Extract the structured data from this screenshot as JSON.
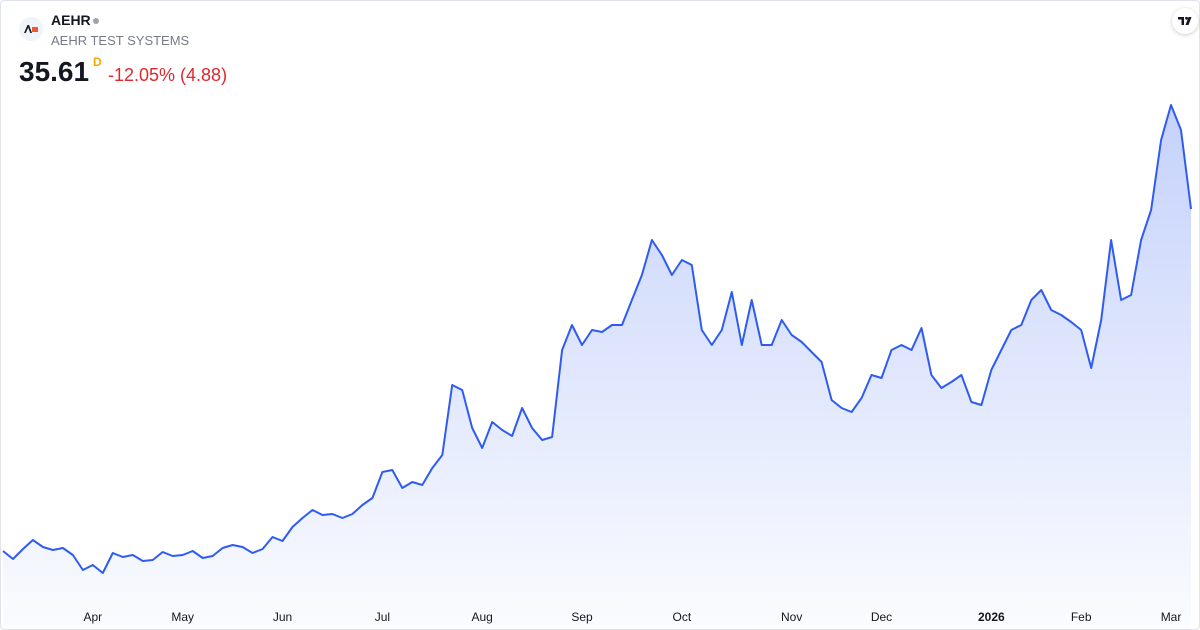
{
  "header": {
    "symbol": "AEHR",
    "name": "AEHR TEST SYSTEMS",
    "last_price": "35.61",
    "interval": "D",
    "change": "-12.05% (4.88)"
  },
  "chart_data": {
    "type": "area",
    "categories": [
      null,
      null,
      null,
      null,
      null,
      null,
      null,
      null,
      null,
      "Apr",
      null,
      null,
      null,
      null,
      null,
      null,
      null,
      null,
      "May",
      null,
      null,
      null,
      null,
      null,
      null,
      null,
      null,
      null,
      "Jun",
      null,
      null,
      null,
      null,
      null,
      null,
      null,
      null,
      null,
      "Jul",
      null,
      null,
      null,
      null,
      null,
      null,
      null,
      null,
      null,
      "Aug",
      null,
      null,
      null,
      null,
      null,
      null,
      null,
      null,
      null,
      "Sep",
      null,
      null,
      null,
      null,
      null,
      null,
      null,
      null,
      null,
      "Oct",
      null,
      null,
      null,
      null,
      null,
      null,
      null,
      null,
      null,
      null,
      "Nov",
      null,
      null,
      null,
      null,
      null,
      null,
      null,
      null,
      "Dec",
      null,
      null,
      null,
      null,
      null,
      null,
      null,
      null,
      null,
      null,
      "2026",
      null,
      null,
      null,
      null,
      null,
      null,
      null,
      null,
      "Feb",
      null,
      null,
      null,
      null,
      null,
      null,
      null,
      null,
      "Mar",
      null,
      null
    ],
    "series": [
      {
        "color": "#2f5cf0",
        "values": [
          8.25,
          7.61,
          8.41,
          9.13,
          8.57,
          8.33,
          8.49,
          7.93,
          6.73,
          7.13,
          6.49,
          8.09,
          7.77,
          7.93,
          7.45,
          7.53,
          8.17,
          7.85,
          7.93,
          8.25,
          7.69,
          7.85,
          8.49,
          8.73,
          8.57,
          8.09,
          8.41,
          9.37,
          9.05,
          10.17,
          10.89,
          11.53,
          11.13,
          11.21,
          10.89,
          11.21,
          11.93,
          12.49,
          14.57,
          14.73,
          13.29,
          13.77,
          13.53,
          14.89,
          15.93,
          21.53,
          21.13,
          18.09,
          16.49,
          18.57,
          17.93,
          17.45,
          19.69,
          18.09,
          17.13,
          17.37,
          24.33,
          26.33,
          24.73,
          25.93,
          25.77,
          26.33,
          26.33,
          28.33,
          30.33,
          33.13,
          31.93,
          30.33,
          31.53,
          31.13,
          25.93,
          24.73,
          25.93,
          28.97,
          24.73,
          28.33,
          24.73,
          24.73,
          26.73,
          25.53,
          24.97,
          24.17,
          23.37,
          20.33,
          19.69,
          19.37,
          20.49,
          22.33,
          22.09,
          24.33,
          24.73,
          24.33,
          26.09,
          22.33,
          21.29,
          21.77,
          22.33,
          20.17,
          19.93,
          22.73,
          24.33,
          25.93,
          26.33,
          28.33,
          29.13,
          27.53,
          27.13,
          26.57,
          25.93,
          22.89,
          26.73,
          33.13,
          28.33,
          28.73,
          33.13,
          35.53,
          41.13,
          43.93,
          41.93,
          35.61
        ]
      }
    ]
  }
}
